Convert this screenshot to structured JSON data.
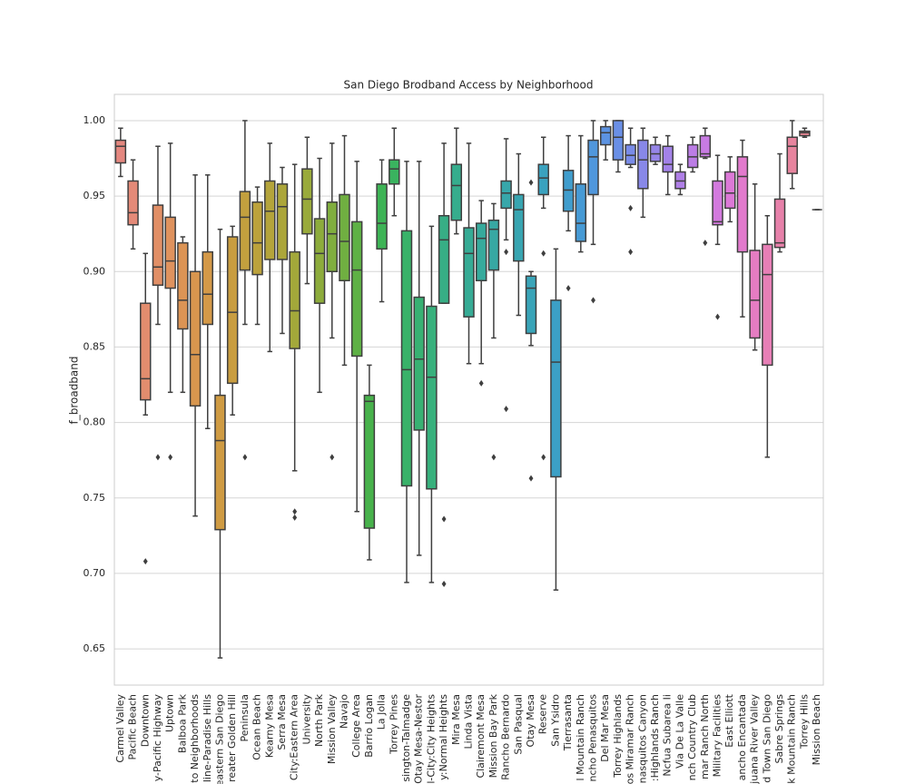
{
  "chart_data": {
    "type": "box",
    "title": "San Diego Brodband Access by Neighborhood",
    "y_label": "f_broadband",
    "ylim": [
      0.626,
      1.0174
    ],
    "yticks": [
      {
        "value": 0.65,
        "label": "0.65"
      },
      {
        "value": 0.7,
        "label": "0.70"
      },
      0.75,
      {
        "value": 0.8,
        "label": "0.80"
      },
      0.85,
      {
        "value": 0.9,
        "label": "0.90"
      },
      0.95,
      {
        "value": 1.0,
        "label": "1.00"
      }
    ],
    "grid": true,
    "categories": [
      "Carmel Valley",
      "Pacific Beach",
      "Downtown",
      "y-Pacific Highway",
      "Uptown",
      "Balboa Park",
      "to Neighborhoods",
      "line-Paradise Hills",
      "eastern San Diego",
      "reater Golden Hill",
      "Peninsula",
      "Ocean Beach",
      "Kearny Mesa",
      "Serra Mesa",
      "City:Eastern Area",
      "University",
      "North Park",
      "Mission Valley",
      "Navajo",
      "College Area",
      "Barrio Logan",
      "La Jolla",
      "Torrey Pines",
      "sington-Talmadge",
      "Otay Mesa-Nestor",
      "l-City:City Heights",
      "y:Normal Heights",
      "Mira Mesa",
      "Linda Vista",
      "Clairemont Mesa",
      "Mission Bay Park",
      "Rancho Bernardo",
      "San Pasqual",
      "Otay Mesa",
      "Reserve",
      "San Ysidro",
      "Tierrasanta",
      "l Mountain Ranch",
      "ncho Penasquitos",
      "Del Mar Mesa",
      "Torrey Highlands",
      "os Miramar Ranch",
      "nasquitos Canyon",
      ":Highlands Ranch",
      "Ncfua Subarea Ii",
      "Via De La Valle",
      "nch Country Club",
      "mar Ranch North",
      "Military Facilities",
      "East Elliott",
      "ancho Encantada",
      "juana River Valley",
      "d Town San Diego",
      "Sabre Springs",
      "k Mountain Ranch",
      "Torrey Hills",
      "Mission Beach"
    ],
    "colors": [
      "#e4877f",
      "#e48a78",
      "#e28d6e",
      "#e18f66",
      "#df925e",
      "#dc9455",
      "#d8964e",
      "#d49948",
      "#cf9b43",
      "#c99d40",
      "#c3a03e",
      "#bca23c",
      "#b4a43b",
      "#aca63a",
      "#a3a83a",
      "#99aa3b",
      "#8dac3c",
      "#80ae3e",
      "#70af41",
      "#5eb145",
      "#48b24c",
      "#3db355",
      "#3ab35f",
      "#39b269",
      "#38b173",
      "#37b07c",
      "#37ae85",
      "#36ad8d",
      "#36ab95",
      "#36aa9c",
      "#37a8a3",
      "#37a7aa",
      "#38a5b1",
      "#39a4b8",
      "#3aa2bf",
      "#3ca0c6",
      "#409dcd",
      "#469ad5",
      "#5097dc",
      "#5c93e2",
      "#6a8fe6",
      "#798be8",
      "#8888e8",
      "#9685e8",
      "#a382e8",
      "#b07fe7",
      "#bc7de6",
      "#c87be3",
      "#d37ade",
      "#dc79d7",
      "#e27acd",
      "#e57cc2",
      "#e77fb6",
      "#e781aa",
      "#e7849e",
      "#e68693",
      "#e58888"
    ],
    "boxes": [
      {
        "low": 0.963,
        "q1": 0.972,
        "median": 0.983,
        "q3": 0.987,
        "high": 0.995,
        "outliers": []
      },
      {
        "low": 0.915,
        "q1": 0.931,
        "median": 0.939,
        "q3": 0.96,
        "high": 0.974,
        "outliers": []
      },
      {
        "low": 0.805,
        "q1": 0.815,
        "median": 0.829,
        "q3": 0.879,
        "high": 0.912,
        "outliers": [
          0.708
        ]
      },
      {
        "low": 0.865,
        "q1": 0.891,
        "median": 0.903,
        "q3": 0.944,
        "high": 0.983,
        "outliers": [
          0.777
        ]
      },
      {
        "low": 0.82,
        "q1": 0.889,
        "median": 0.907,
        "q3": 0.936,
        "high": 0.985,
        "outliers": [
          0.777
        ]
      },
      {
        "low": 0.82,
        "q1": 0.862,
        "median": 0.881,
        "q3": 0.919,
        "high": 0.923,
        "outliers": []
      },
      {
        "low": 0.738,
        "q1": 0.811,
        "median": 0.845,
        "q3": 0.9,
        "high": 0.964,
        "outliers": []
      },
      {
        "low": 0.796,
        "q1": 0.865,
        "median": 0.885,
        "q3": 0.913,
        "high": 0.964,
        "outliers": []
      },
      {
        "low": 0.644,
        "q1": 0.729,
        "median": 0.788,
        "q3": 0.818,
        "high": 0.928,
        "outliers": []
      },
      {
        "low": 0.805,
        "q1": 0.826,
        "median": 0.873,
        "q3": 0.923,
        "high": 0.93,
        "outliers": []
      },
      {
        "low": 0.865,
        "q1": 0.901,
        "median": 0.936,
        "q3": 0.953,
        "high": 1.0,
        "outliers": [
          0.777
        ]
      },
      {
        "low": 0.865,
        "q1": 0.898,
        "median": 0.919,
        "q3": 0.946,
        "high": 0.956,
        "outliers": []
      },
      {
        "low": 0.847,
        "q1": 0.908,
        "median": 0.94,
        "q3": 0.96,
        "high": 0.985,
        "outliers": []
      },
      {
        "low": 0.859,
        "q1": 0.908,
        "median": 0.943,
        "q3": 0.958,
        "high": 0.969,
        "outliers": []
      },
      {
        "low": 0.768,
        "q1": 0.849,
        "median": 0.874,
        "q3": 0.913,
        "high": 0.971,
        "outliers": [
          0.741,
          0.737
        ]
      },
      {
        "low": 0.892,
        "q1": 0.925,
        "median": 0.948,
        "q3": 0.968,
        "high": 0.989,
        "outliers": []
      },
      {
        "low": 0.82,
        "q1": 0.879,
        "median": 0.912,
        "q3": 0.935,
        "high": 0.975,
        "outliers": []
      },
      {
        "low": 0.856,
        "q1": 0.9,
        "median": 0.925,
        "q3": 0.946,
        "high": 0.985,
        "outliers": [
          0.777
        ]
      },
      {
        "low": 0.838,
        "q1": 0.894,
        "median": 0.92,
        "q3": 0.951,
        "high": 0.99,
        "outliers": []
      },
      {
        "low": 0.741,
        "q1": 0.844,
        "median": 0.901,
        "q3": 0.933,
        "high": 0.973,
        "outliers": []
      },
      {
        "low": 0.709,
        "q1": 0.73,
        "median": 0.814,
        "q3": 0.818,
        "high": 0.838,
        "outliers": []
      },
      {
        "low": 0.88,
        "q1": 0.915,
        "median": 0.932,
        "q3": 0.958,
        "high": 0.974,
        "outliers": []
      },
      {
        "low": 0.937,
        "q1": 0.958,
        "median": 0.968,
        "q3": 0.974,
        "high": 0.995,
        "outliers": []
      },
      {
        "low": 0.694,
        "q1": 0.758,
        "median": 0.835,
        "q3": 0.927,
        "high": 0.973,
        "outliers": []
      },
      {
        "low": 0.712,
        "q1": 0.795,
        "median": 0.842,
        "q3": 0.883,
        "high": 0.973,
        "outliers": []
      },
      {
        "low": 0.694,
        "q1": 0.756,
        "median": 0.83,
        "q3": 0.877,
        "high": 0.93,
        "outliers": []
      },
      {
        "low": 0.879,
        "q1": 0.879,
        "median": 0.921,
        "q3": 0.937,
        "high": 0.985,
        "outliers": [
          0.736,
          0.693
        ]
      },
      {
        "low": 0.925,
        "q1": 0.934,
        "median": 0.957,
        "q3": 0.971,
        "high": 0.995,
        "outliers": []
      },
      {
        "low": 0.839,
        "q1": 0.87,
        "median": 0.912,
        "q3": 0.929,
        "high": 0.985,
        "outliers": []
      },
      {
        "low": 0.839,
        "q1": 0.894,
        "median": 0.922,
        "q3": 0.932,
        "high": 0.947,
        "outliers": [
          0.826
        ]
      },
      {
        "low": 0.856,
        "q1": 0.901,
        "median": 0.928,
        "q3": 0.934,
        "high": 0.945,
        "outliers": [
          0.777
        ]
      },
      {
        "low": 0.921,
        "q1": 0.942,
        "median": 0.952,
        "q3": 0.96,
        "high": 0.988,
        "outliers": [
          0.913,
          0.809
        ]
      },
      {
        "low": 0.871,
        "q1": 0.907,
        "median": 0.941,
        "q3": 0.951,
        "high": 0.978,
        "outliers": []
      },
      {
        "low": 0.851,
        "q1": 0.859,
        "median": 0.889,
        "q3": 0.897,
        "high": 0.9,
        "outliers": [
          0.959,
          0.763
        ]
      },
      {
        "low": 0.942,
        "q1": 0.951,
        "median": 0.962,
        "q3": 0.971,
        "high": 0.989,
        "outliers": [
          0.912,
          0.777
        ]
      },
      {
        "low": 0.689,
        "q1": 0.764,
        "median": 0.84,
        "q3": 0.881,
        "high": 0.915,
        "outliers": []
      },
      {
        "low": 0.927,
        "q1": 0.94,
        "median": 0.954,
        "q3": 0.967,
        "high": 0.99,
        "outliers": [
          0.889
        ]
      },
      {
        "low": 0.913,
        "q1": 0.92,
        "median": 0.932,
        "q3": 0.958,
        "high": 0.99,
        "outliers": []
      },
      {
        "low": 0.918,
        "q1": 0.951,
        "median": 0.976,
        "q3": 0.987,
        "high": 1.0,
        "outliers": [
          0.881
        ]
      },
      {
        "low": 0.974,
        "q1": 0.984,
        "median": 0.992,
        "q3": 0.996,
        "high": 1.0,
        "outliers": []
      },
      {
        "low": 0.966,
        "q1": 0.974,
        "median": 0.989,
        "q3": 1.0,
        "high": 1.0,
        "outliers": []
      },
      {
        "low": 0.969,
        "q1": 0.971,
        "median": 0.977,
        "q3": 0.984,
        "high": 0.995,
        "outliers": [
          0.942,
          0.913
        ]
      },
      {
        "low": 0.936,
        "q1": 0.955,
        "median": 0.974,
        "q3": 0.987,
        "high": 0.995,
        "outliers": []
      },
      {
        "low": 0.971,
        "q1": 0.973,
        "median": 0.978,
        "q3": 0.984,
        "high": 0.989,
        "outliers": []
      },
      {
        "low": 0.951,
        "q1": 0.966,
        "median": 0.971,
        "q3": 0.983,
        "high": 0.99,
        "outliers": []
      },
      {
        "low": 0.951,
        "q1": 0.955,
        "median": 0.96,
        "q3": 0.966,
        "high": 0.971,
        "outliers": []
      },
      {
        "low": 0.966,
        "q1": 0.969,
        "median": 0.976,
        "q3": 0.984,
        "high": 0.989,
        "outliers": []
      },
      {
        "low": 0.975,
        "q1": 0.976,
        "median": 0.978,
        "q3": 0.99,
        "high": 0.995,
        "outliers": [
          0.919
        ]
      },
      {
        "low": 0.918,
        "q1": 0.931,
        "median": 0.933,
        "q3": 0.96,
        "high": 0.977,
        "outliers": [
          0.87
        ]
      },
      {
        "low": 0.933,
        "q1": 0.942,
        "median": 0.952,
        "q3": 0.966,
        "high": 0.976,
        "outliers": []
      },
      {
        "low": 0.87,
        "q1": 0.913,
        "median": 0.963,
        "q3": 0.976,
        "high": 0.987,
        "outliers": []
      },
      {
        "low": 0.848,
        "q1": 0.856,
        "median": 0.881,
        "q3": 0.914,
        "high": 0.958,
        "outliers": []
      },
      {
        "low": 0.777,
        "q1": 0.838,
        "median": 0.898,
        "q3": 0.918,
        "high": 0.937,
        "outliers": []
      },
      {
        "low": 0.913,
        "q1": 0.916,
        "median": 0.919,
        "q3": 0.948,
        "high": 0.978,
        "outliers": []
      },
      {
        "low": 0.955,
        "q1": 0.965,
        "median": 0.983,
        "q3": 0.989,
        "high": 1.0,
        "outliers": []
      },
      {
        "low": 0.989,
        "q1": 0.99,
        "median": 0.992,
        "q3": 0.993,
        "high": 0.995,
        "outliers": []
      },
      {
        "low": 0.941,
        "q1": 0.941,
        "median": 0.941,
        "q3": 0.941,
        "high": 0.941,
        "outliers": []
      }
    ]
  }
}
